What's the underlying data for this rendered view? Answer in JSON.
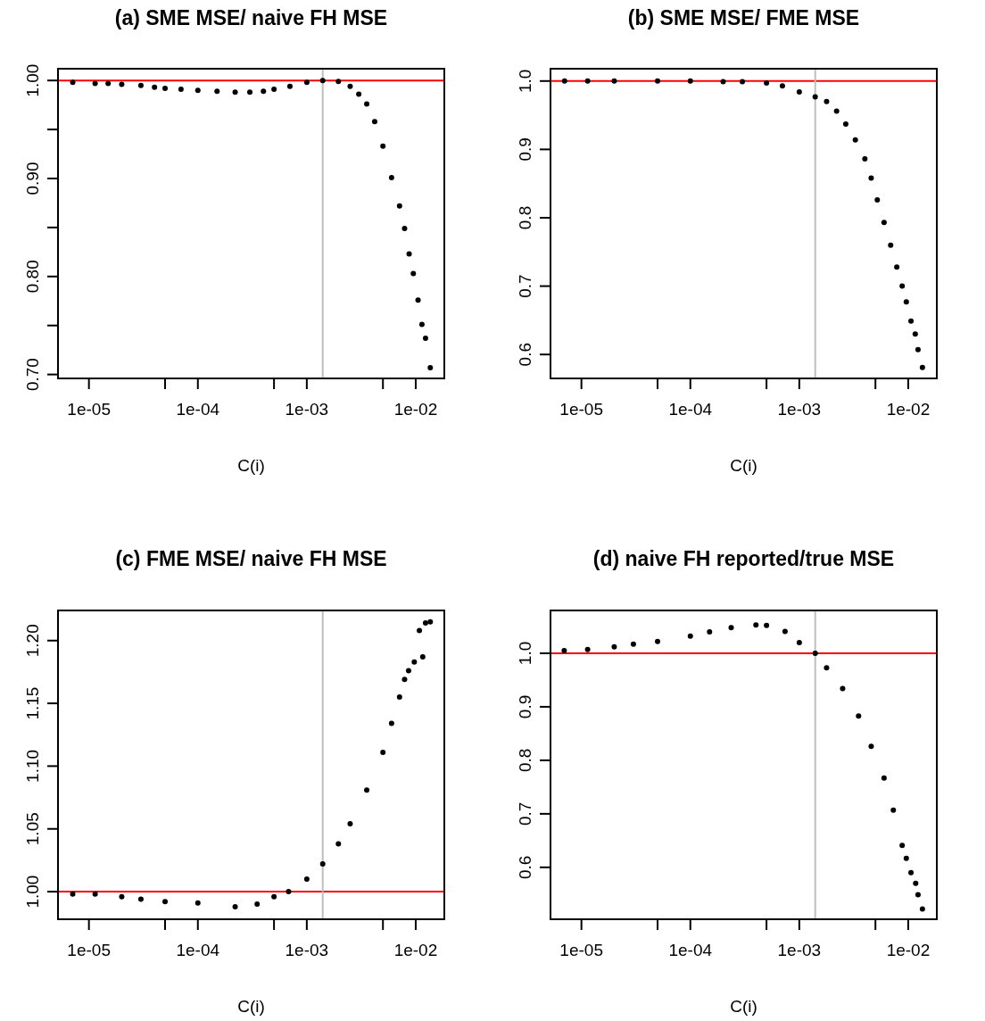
{
  "chart_data": [
    {
      "type": "scatter",
      "title": "(a) SME MSE/ naive FH MSE",
      "xlabel": "C(i)",
      "log": "x",
      "grid": false,
      "marker": "circle",
      "xlim": [
        5.2e-06,
        0.0183
      ],
      "xticks": [
        {
          "value": 1e-05,
          "label": "1e-05"
        },
        {
          "value": 5e-05,
          "label": null
        },
        {
          "value": 0.0001,
          "label": "1e-04"
        },
        {
          "value": 0.0005,
          "label": null
        },
        {
          "value": 0.001,
          "label": "1e-03"
        },
        {
          "value": 0.005,
          "label": null
        },
        {
          "value": 0.01,
          "label": "1e-02"
        }
      ],
      "ylim": [
        0.696,
        1.012
      ],
      "yticks": [
        {
          "value": 0.7,
          "label": "0.70"
        },
        {
          "value": 0.75,
          "label": null
        },
        {
          "value": 0.8,
          "label": "0.80"
        },
        {
          "value": 0.85,
          "label": null
        },
        {
          "value": 0.9,
          "label": "0.90"
        },
        {
          "value": 0.95,
          "label": null
        },
        {
          "value": 1,
          "label": "1.00"
        }
      ],
      "ref_lines": [
        {
          "axis": "y",
          "value": 1,
          "color": "#ff0000"
        },
        {
          "axis": "x",
          "value": 0.0014,
          "color": "#bebebe"
        }
      ],
      "series": [
        {
          "color": "#000000",
          "x": [
            7.1e-06,
            1.14e-05,
            1.5e-05,
            2e-05,
            3e-05,
            4e-05,
            5e-05,
            7e-05,
            0.0001,
            0.00015,
            0.00022,
            0.0003,
            0.0004,
            0.0005,
            0.0007,
            0.001,
            0.0014,
            0.00195,
            0.0025,
            0.003,
            0.00355,
            0.0042,
            0.005,
            0.006,
            0.0071,
            0.0079,
            0.0087,
            0.0095,
            0.0105,
            0.0114,
            0.0123,
            0.0136
          ],
          "values": [
            0.998,
            0.997,
            0.997,
            0.996,
            0.995,
            0.993,
            0.992,
            0.991,
            0.99,
            0.989,
            0.988,
            0.988,
            0.989,
            0.991,
            0.994,
            0.998,
            1.0,
            0.999,
            0.994,
            0.986,
            0.976,
            0.958,
            0.933,
            0.901,
            0.872,
            0.849,
            0.823,
            0.803,
            0.776,
            0.751,
            0.737,
            0.707
          ]
        }
      ]
    },
    {
      "type": "scatter",
      "title": "(b) SME MSE/ FME MSE",
      "xlabel": "C(i)",
      "log": "x",
      "grid": false,
      "marker": "circle",
      "xlim": [
        5.2e-06,
        0.0183
      ],
      "xticks": [
        {
          "value": 1e-05,
          "label": "1e-05"
        },
        {
          "value": 5e-05,
          "label": null
        },
        {
          "value": 0.0001,
          "label": "1e-04"
        },
        {
          "value": 0.0005,
          "label": null
        },
        {
          "value": 0.001,
          "label": "1e-03"
        },
        {
          "value": 0.005,
          "label": null
        },
        {
          "value": 0.01,
          "label": "1e-02"
        }
      ],
      "ylim": [
        0.565,
        1.018
      ],
      "yticks": [
        0.6,
        0.7,
        0.8,
        0.9,
        {
          "value": 1,
          "label": "1.0"
        }
      ],
      "ref_lines": [
        {
          "axis": "y",
          "value": 1,
          "color": "#ff0000"
        },
        {
          "axis": "x",
          "value": 0.0014,
          "color": "#bebebe"
        }
      ],
      "series": [
        {
          "color": "#000000",
          "x": [
            7e-06,
            1.14e-05,
            2e-05,
            5e-05,
            0.0001,
            0.0002,
            0.0003,
            0.0005,
            0.0007,
            0.001,
            0.0014,
            0.00178,
            0.0022,
            0.00267,
            0.00327,
            0.004,
            0.00457,
            0.0052,
            0.006,
            0.0069,
            0.00785,
            0.0088,
            0.0096,
            0.0106,
            0.0116,
            0.0123,
            0.0135
          ],
          "values": [
            1.0,
            1.0,
            1.0,
            1.0,
            1.0,
            0.999,
            0.999,
            0.997,
            0.993,
            0.984,
            0.977,
            0.97,
            0.956,
            0.937,
            0.914,
            0.886,
            0.858,
            0.826,
            0.793,
            0.76,
            0.728,
            0.7,
            0.677,
            0.649,
            0.63,
            0.607,
            0.581
          ]
        }
      ]
    },
    {
      "type": "scatter",
      "title": "(c) FME MSE/ naive FH MSE",
      "xlabel": "C(i)",
      "log": "x",
      "grid": false,
      "marker": "circle",
      "xlim": [
        5.2e-06,
        0.0183
      ],
      "xticks": [
        {
          "value": 1e-05,
          "label": "1e-05"
        },
        {
          "value": 5e-05,
          "label": null
        },
        {
          "value": 0.0001,
          "label": "1e-04"
        },
        {
          "value": 0.0005,
          "label": null
        },
        {
          "value": 0.001,
          "label": "1e-03"
        },
        {
          "value": 0.005,
          "label": null
        },
        {
          "value": 0.01,
          "label": "1e-02"
        }
      ],
      "ylim": [
        0.978,
        1.224
      ],
      "yticks": [
        {
          "value": 1,
          "label": "1.00"
        },
        1.05,
        {
          "value": 1.1,
          "label": "1.10"
        },
        1.15,
        {
          "value": 1.2,
          "label": "1.20"
        }
      ],
      "ref_lines": [
        {
          "axis": "y",
          "value": 1,
          "color": "#ff0000"
        },
        {
          "axis": "x",
          "value": 0.0014,
          "color": "#bebebe"
        }
      ],
      "series": [
        {
          "color": "#000000",
          "x": [
            7.1e-06,
            1.14e-05,
            2e-05,
            3e-05,
            5e-05,
            0.0001,
            0.00022,
            0.00035,
            0.0005,
            0.00068,
            0.001,
            0.0014,
            0.00195,
            0.0025,
            0.00355,
            0.005,
            0.006,
            0.0071,
            0.0079,
            0.0086,
            0.0097,
            0.0108,
            0.0116,
            0.0123,
            0.0136
          ],
          "values": [
            0.998,
            0.998,
            0.996,
            0.994,
            0.992,
            0.991,
            0.988,
            0.99,
            0.996,
            1.0,
            1.01,
            1.022,
            1.038,
            1.054,
            1.081,
            1.111,
            1.134,
            1.155,
            1.169,
            1.176,
            1.183,
            1.208,
            1.187,
            1.214,
            1.215
          ]
        }
      ]
    },
    {
      "type": "scatter",
      "title": "(d) naive FH reported/true MSE",
      "xlabel": "C(i)",
      "log": "x",
      "grid": false,
      "marker": "circle",
      "xlim": [
        5.2e-06,
        0.0183
      ],
      "xticks": [
        {
          "value": 1e-05,
          "label": "1e-05"
        },
        {
          "value": 5e-05,
          "label": null
        },
        {
          "value": 0.0001,
          "label": "1e-04"
        },
        {
          "value": 0.0005,
          "label": null
        },
        {
          "value": 0.001,
          "label": "1e-03"
        },
        {
          "value": 0.005,
          "label": null
        },
        {
          "value": 0.01,
          "label": "1e-02"
        }
      ],
      "ylim": [
        0.503,
        1.08
      ],
      "yticks": [
        0.6,
        0.7,
        0.8,
        0.9,
        {
          "value": 1,
          "label": "1.0"
        }
      ],
      "ref_lines": [
        {
          "axis": "y",
          "value": 1,
          "color": "#ff0000"
        },
        {
          "axis": "x",
          "value": 0.0014,
          "color": "#bebebe"
        }
      ],
      "series": [
        {
          "color": "#000000",
          "x": [
            6.95e-06,
            1.14e-05,
            2e-05,
            3e-05,
            5e-05,
            0.0001,
            0.00015,
            0.000237,
            0.0004,
            0.0005,
            0.00074,
            0.001,
            0.0014,
            0.00178,
            0.0025,
            0.0035,
            0.00457,
            0.006,
            0.0073,
            0.0088,
            0.0096,
            0.0106,
            0.0117,
            0.0123,
            0.0135
          ],
          "values": [
            1.005,
            1.007,
            1.012,
            1.017,
            1.022,
            1.032,
            1.04,
            1.048,
            1.053,
            1.052,
            1.041,
            1.02,
            1.0,
            0.973,
            0.934,
            0.883,
            0.826,
            0.767,
            0.707,
            0.641,
            0.617,
            0.59,
            0.57,
            0.549,
            0.522
          ]
        }
      ]
    }
  ]
}
